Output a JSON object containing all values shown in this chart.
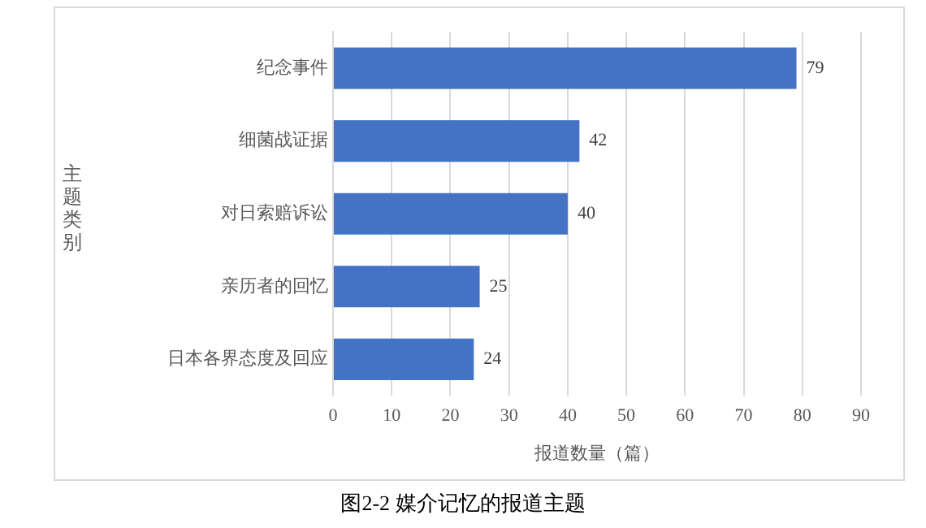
{
  "chart_data": {
    "type": "bar",
    "orientation": "horizontal",
    "title": "图2-2  媒介记忆的报道主题",
    "xlabel": "报道数量（篇）",
    "ylabel": "主题类别",
    "categories": [
      "纪念事件",
      "细菌战证据",
      "对日索赔诉讼",
      "亲历者的回忆",
      "日本各界态度及回应"
    ],
    "values": [
      79,
      42,
      40,
      25,
      24
    ],
    "color": "#4472c4",
    "xlim": [
      0,
      90
    ],
    "xticks": [
      0,
      10,
      20,
      30,
      40,
      50,
      60,
      70,
      80,
      90
    ],
    "grid": "x",
    "data_labels": true,
    "legend": false
  }
}
